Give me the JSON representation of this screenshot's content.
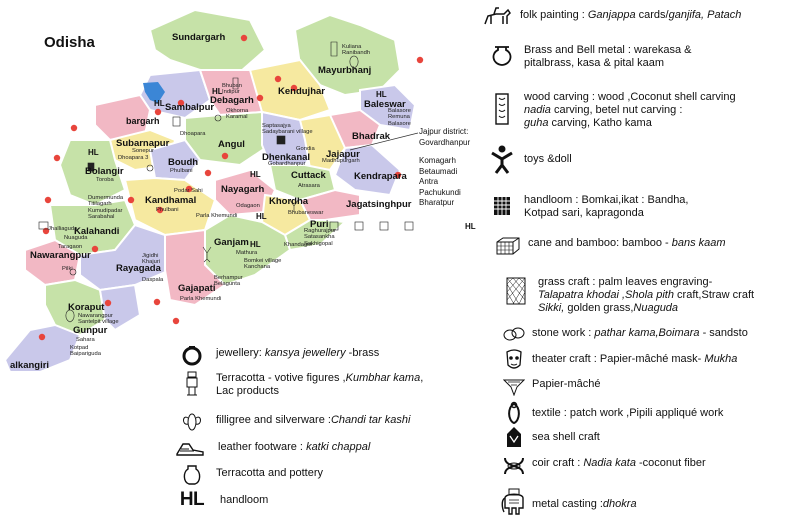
{
  "map_title": "Odisha",
  "districts": [
    "Sundargarh",
    "Mayurbhanj",
    "Kendujhar",
    "Baleswar",
    "Sambalpur",
    "Debagarh",
    "bargarh",
    "Bhadrak",
    "Angul",
    "Dhenkanal",
    "Jajapur",
    "Subarnapur",
    "Bolangir",
    "Boudh",
    "Kendrapara",
    "Cuttack",
    "Nayagarh",
    "Khordha",
    "Jagatsinghpur",
    "Puri",
    "Kandhamal",
    "Kalahandi",
    "Ganjam",
    "Nawarangpur",
    "Rayagada",
    "Gajapati",
    "Koraput",
    "Gunpur",
    "alkangiri"
  ],
  "localities": {
    "kuliana": "Kuliana\nRanibandh",
    "bhuban": "Bhuban\nIndipur",
    "okhorna": "Okhorna\nKaramal",
    "balasore": "Balasore\nRemuna\nBalasore",
    "saptasajya": "Saptasajya\nSadaybarani village",
    "gondia": "Gondia",
    "madhupur": "Madhupurgarh",
    "gobardhan": "Gobardhanpur",
    "dhoapara": "Dhoapara",
    "sonepur": "Sonepur",
    "dhoapara2": "Dhoapara 3",
    "phulbani": "Phulbani",
    "toroba": "Toroba",
    "dumermunda": "Dumermunda\nTitilagarh\nKumudipadar\nSarabahal",
    "podar": "Podar Sahi",
    "phulbani2": "Phulbani",
    "parla": "Parla Khemundi",
    "odagaon": "Odagaon",
    "atrasara": "Atrasara",
    "bhubaneswar": "Bhubaneswar",
    "sakhigopal": "Raghurajpur\nSatasankha\nSakhigopal",
    "jhalliaguda": "Jhalliaguda",
    "nuaguda": "Nuaguda",
    "taragaon": "Taragaon",
    "pilki": "Pilki",
    "jigidhi": "Jigidhi\nKhajuri",
    "daspala": "Daspala",
    "mathura": "Mathura",
    "bomkei": "Bomkei village\nKanchana",
    "kandagiri": "Khandagiri",
    "berhampur": "Berhampur\nBelagunta",
    "parla2": "Parla Khemundi",
    "nawarangpur": "Nawarangpur\nSantelpit village",
    "sahara": "Sahara",
    "kotpad": "Kotpad\nBaipariguda"
  },
  "map_hl": "HL",
  "callout": {
    "district": "Jajpur district:\nGovardhanpur",
    "places": "Komagarh\nBetaumadi\nAntra\nPachukundi\nBharatpur"
  },
  "legend_left": [
    {
      "icon": "ring-icon",
      "text": "jewellery: ",
      "em": "kansya jewellery",
      "tail": " -brass"
    },
    {
      "icon": "votive-figure-icon",
      "text": "Terracotta - votive figures ,",
      "em": "Kumbhar kama",
      "tail": ",\nLac products"
    },
    {
      "icon": "filigree-icon",
      "text": "filligree and silverware :",
      "em": "Chandi tar kashi",
      "tail": ""
    },
    {
      "icon": "shoe-icon",
      "text": "leather footware : ",
      "em": "katki chappal",
      "tail": ""
    },
    {
      "icon": "pot-icon",
      "text": "Terracotta and pottery",
      "em": "",
      "tail": ""
    },
    {
      "icon": "hl-icon",
      "text": "handloom",
      "em": "",
      "tail": ""
    }
  ],
  "legend_right": [
    {
      "icon": "horse-rider-icon",
      "text": "folk painting : ",
      "em": "Ganjappa",
      "tail": " cards/",
      "em2": "ganjifa, Patach",
      "tail2": ""
    },
    {
      "icon": "brass-pot-icon",
      "text": "Brass and Bell metal : warekasa &\npitalbrass, kasa & pital kaam",
      "em": "",
      "tail": ""
    },
    {
      "icon": "wood-carving-icon",
      "text": "wood carving : wood ,Coconut shell carving\n",
      "em": "nadia",
      "tail": " carving, betel nut carving :\n",
      "em2": "guha",
      "tail2": " carving, Katho kama"
    },
    {
      "icon": "toy-doll-icon",
      "text": "toys &doll",
      "em": "",
      "tail": ""
    },
    {
      "icon": "handloom-weave-icon",
      "text": "handloom : Bomkai,ikat : Bandha,\nKotpad sari, kapragonda",
      "em": "",
      "tail": ""
    },
    {
      "icon": "cane-basket-icon",
      "text": "cane and bamboo: bamboo - ",
      "em": "bans kaam",
      "tail": ""
    },
    {
      "icon": "grass-craft-icon",
      "text": "grass craft : palm leaves engraving-\n",
      "em": "Talapatra khodai ,Shola pith",
      "tail": " craft,Straw craft\n",
      "em2": "Sikki,",
      "tail2": " golden grass,",
      "em3": "Nuaguda"
    },
    {
      "icon": "stone-work-icon",
      "text": "stone work : ",
      "em": "pathar kama,Boimara",
      "tail": " - sandsto"
    },
    {
      "icon": "mask-icon",
      "text": "theater craft : Papier-mâché mask- ",
      "em": "Mukha",
      "tail": ""
    },
    {
      "icon": "papier-mache-icon",
      "text": "Papier-mâché",
      "em": "",
      "tail": ""
    },
    {
      "icon": "textile-icon",
      "text": "textile : patch work ,Pipili appliqué work",
      "em": "",
      "tail": ""
    },
    {
      "icon": "sea-shell-icon",
      "text": "sea shell craft",
      "em": "",
      "tail": ""
    },
    {
      "icon": "coir-icon",
      "text": "coir craft : ",
      "em": "Nadia kata",
      "tail": " -coconut fiber"
    },
    {
      "icon": "elephant-icon",
      "text": "metal casting :",
      "em": "dhokra",
      "tail": ""
    }
  ],
  "colors": {
    "green": "#c6e2a8",
    "pink": "#f2b8c4",
    "lavender": "#c9c8ea",
    "yellow": "#f6e9a0",
    "border": "#ffffff",
    "dot": "#e8453c",
    "water": "#3b86d6"
  }
}
